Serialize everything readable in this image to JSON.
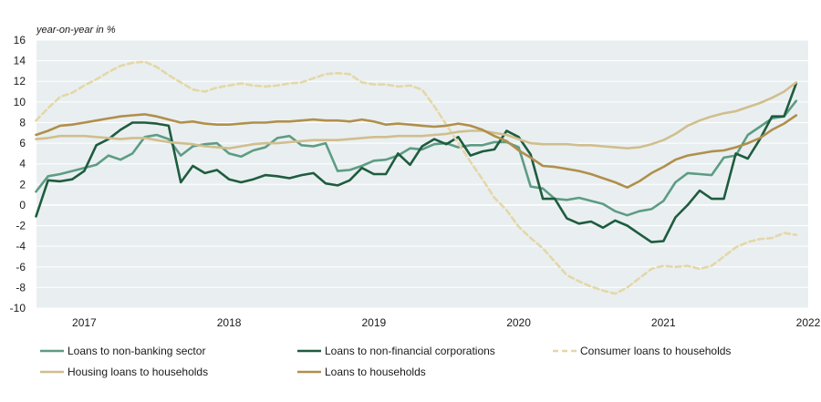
{
  "chart_data": {
    "type": "line",
    "unit_label": "year-on-year in %",
    "xlabel": "",
    "ylabel": "",
    "ylim": [
      -10,
      16
    ],
    "yticks": [
      -10,
      -8,
      -6,
      -4,
      -2,
      0,
      2,
      4,
      6,
      8,
      10,
      12,
      14,
      16
    ],
    "xlim": [
      2016.67,
      2022.0
    ],
    "xticks": [
      2017,
      2018,
      2019,
      2020,
      2021,
      2022
    ],
    "grid": true,
    "legend_position": "bottom",
    "x": [
      2016.667,
      2016.75,
      2016.833,
      2016.917,
      2017.0,
      2017.083,
      2017.167,
      2017.25,
      2017.333,
      2017.417,
      2017.5,
      2017.583,
      2017.667,
      2017.75,
      2017.833,
      2017.917,
      2018.0,
      2018.083,
      2018.167,
      2018.25,
      2018.333,
      2018.417,
      2018.5,
      2018.583,
      2018.667,
      2018.75,
      2018.833,
      2018.917,
      2019.0,
      2019.083,
      2019.167,
      2019.25,
      2019.333,
      2019.417,
      2019.5,
      2019.583,
      2019.667,
      2019.75,
      2019.833,
      2019.917,
      2020.0,
      2020.083,
      2020.167,
      2020.25,
      2020.333,
      2020.417,
      2020.5,
      2020.583,
      2020.667,
      2020.75,
      2020.833,
      2020.917,
      2021.0,
      2021.083,
      2021.167,
      2021.25,
      2021.333,
      2021.417,
      2021.5,
      2021.583,
      2021.667,
      2021.75,
      2021.833,
      2021.917
    ],
    "series": [
      {
        "name": "Loans to non-banking sector",
        "color": "#5e9c84",
        "dash": "solid",
        "width": 2.6,
        "values": [
          1.3,
          2.8,
          3.0,
          3.3,
          3.6,
          3.9,
          4.8,
          4.4,
          5.0,
          6.6,
          6.8,
          6.4,
          4.8,
          5.7,
          5.9,
          6.0,
          5.0,
          4.7,
          5.3,
          5.6,
          6.5,
          6.7,
          5.8,
          5.7,
          6.0,
          3.3,
          3.4,
          3.8,
          4.3,
          4.4,
          4.8,
          5.5,
          5.4,
          5.9,
          6.0,
          5.6,
          5.8,
          5.8,
          6.1,
          6.1,
          5.6,
          1.8,
          1.6,
          0.6,
          0.5,
          0.7,
          0.4,
          0.1,
          -0.6,
          -1.0,
          -0.6,
          -0.4,
          0.4,
          2.2,
          3.1,
          3.0,
          2.9,
          4.6,
          4.8,
          6.8,
          7.6,
          8.4,
          8.6,
          10.1
        ]
      },
      {
        "name": "Loans to non-financial corporations",
        "color": "#1e5c3f",
        "dash": "solid",
        "width": 2.6,
        "values": [
          -1.1,
          2.4,
          2.3,
          2.5,
          3.3,
          5.8,
          6.4,
          7.3,
          8.0,
          8.0,
          7.9,
          7.7,
          2.2,
          3.8,
          3.1,
          3.4,
          2.5,
          2.2,
          2.5,
          2.9,
          2.8,
          2.6,
          2.9,
          3.1,
          2.1,
          1.9,
          2.4,
          3.6,
          3.0,
          3.0,
          5.0,
          3.9,
          5.7,
          6.4,
          5.9,
          6.6,
          4.8,
          5.2,
          5.4,
          7.2,
          6.6,
          4.9,
          0.6,
          0.6,
          -1.3,
          -1.8,
          -1.6,
          -2.2,
          -1.5,
          -2.0,
          -2.8,
          -3.6,
          -3.5,
          -1.2,
          0.0,
          1.4,
          0.6,
          0.6,
          5.0,
          4.5,
          6.4,
          8.6,
          8.6,
          11.8
        ]
      },
      {
        "name": "Consumer loans to households",
        "color": "#e4d7a8",
        "dash": "6,4",
        "width": 2.6,
        "values": [
          8.2,
          9.4,
          10.5,
          10.9,
          11.6,
          12.2,
          12.9,
          13.5,
          13.8,
          13.9,
          13.4,
          12.6,
          11.9,
          11.2,
          11.0,
          11.4,
          11.6,
          11.8,
          11.6,
          11.5,
          11.6,
          11.8,
          11.9,
          12.3,
          12.7,
          12.8,
          12.7,
          11.9,
          11.7,
          11.7,
          11.5,
          11.6,
          11.2,
          9.6,
          7.8,
          6.0,
          4.2,
          2.5,
          0.7,
          -0.5,
          -2.1,
          -3.2,
          -4.2,
          -5.5,
          -6.8,
          -7.4,
          -7.9,
          -8.3,
          -8.6,
          -8.0,
          -7.1,
          -6.2,
          -5.9,
          -6.0,
          -5.9,
          -6.2,
          -5.9,
          -5.0,
          -4.1,
          -3.6,
          -3.3,
          -3.2,
          -2.7,
          -2.9
        ]
      },
      {
        "name": "Housing loans to households",
        "color": "#d1be8e",
        "dash": "solid",
        "width": 2.6,
        "values": [
          6.4,
          6.5,
          6.7,
          6.7,
          6.7,
          6.6,
          6.5,
          6.4,
          6.5,
          6.5,
          6.3,
          6.1,
          6.0,
          5.9,
          5.7,
          5.6,
          5.5,
          5.7,
          5.9,
          6.0,
          6.0,
          6.1,
          6.2,
          6.3,
          6.3,
          6.3,
          6.4,
          6.5,
          6.6,
          6.6,
          6.7,
          6.7,
          6.7,
          6.8,
          6.9,
          7.1,
          7.2,
          7.2,
          7.0,
          6.8,
          6.4,
          6.0,
          5.9,
          5.9,
          5.9,
          5.8,
          5.8,
          5.7,
          5.6,
          5.5,
          5.6,
          5.9,
          6.3,
          6.9,
          7.7,
          8.2,
          8.6,
          8.9,
          9.1,
          9.5,
          9.9,
          10.4,
          11.0,
          11.9
        ]
      },
      {
        "name": "Loans to households",
        "color": "#b08f4c",
        "dash": "solid",
        "width": 2.6,
        "values": [
          6.8,
          7.2,
          7.7,
          7.8,
          8.0,
          8.2,
          8.4,
          8.6,
          8.7,
          8.8,
          8.6,
          8.3,
          8.0,
          8.1,
          7.9,
          7.8,
          7.8,
          7.9,
          8.0,
          8.0,
          8.1,
          8.1,
          8.2,
          8.3,
          8.2,
          8.2,
          8.1,
          8.3,
          8.1,
          7.8,
          7.9,
          7.8,
          7.7,
          7.6,
          7.7,
          7.9,
          7.7,
          7.3,
          6.7,
          6.2,
          5.3,
          4.6,
          3.8,
          3.7,
          3.5,
          3.3,
          3.0,
          2.6,
          2.2,
          1.7,
          2.3,
          3.1,
          3.7,
          4.4,
          4.8,
          5.0,
          5.2,
          5.3,
          5.6,
          6.0,
          6.5,
          7.3,
          7.9,
          8.7
        ]
      }
    ]
  }
}
